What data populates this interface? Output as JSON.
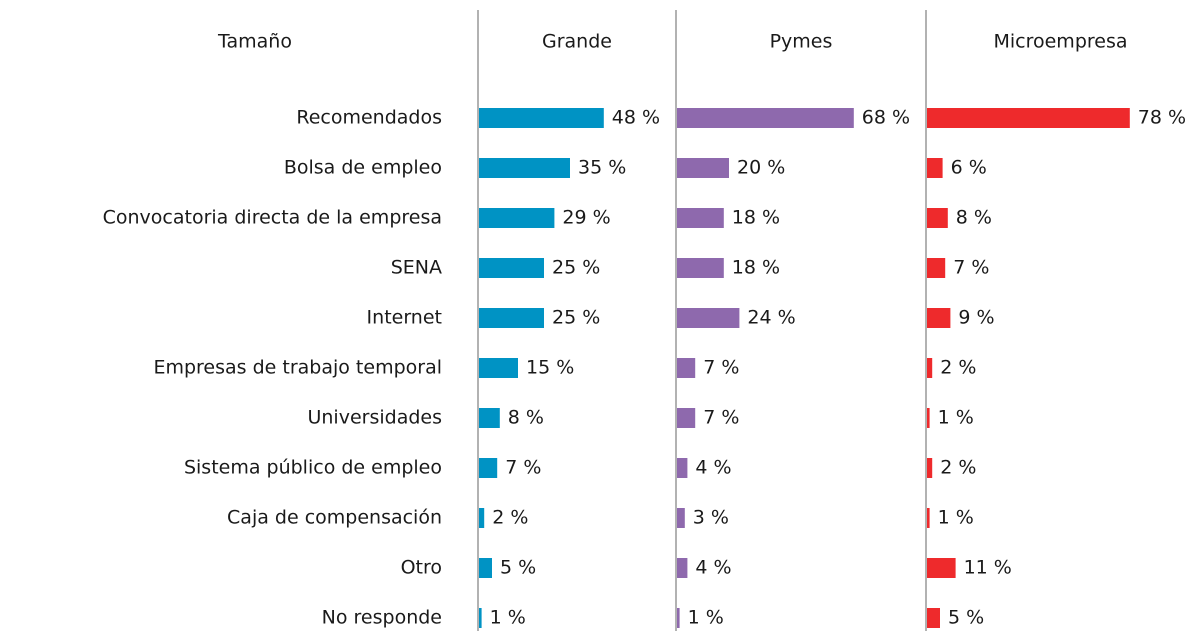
{
  "chart_data": {
    "type": "bar",
    "y_label": "Tamaño",
    "categories": [
      "Recomendados",
      "Bolsa de empleo",
      "Convocatoria directa de la empresa",
      "SENA",
      "Internet",
      "Empresas de trabajo temporal",
      "Universidades",
      "Sistema público de empleo",
      "Caja de compensación",
      "Otro",
      "No responde"
    ],
    "series": [
      {
        "name": "Grande",
        "color": "#0093c4",
        "values": [
          48,
          35,
          29,
          25,
          25,
          15,
          8,
          7,
          2,
          5,
          1
        ],
        "value_labels": [
          "48 %",
          "35 %",
          "29 %",
          "25 %",
          "25 %",
          "15 %",
          "8 %",
          "7 %",
          "2 %",
          "5 %",
          "1 %"
        ]
      },
      {
        "name": "Pymes",
        "color": "#8e69ad",
        "values": [
          68,
          20,
          18,
          18,
          24,
          7,
          7,
          4,
          3,
          4,
          1
        ],
        "value_labels": [
          "68 %",
          "20 %",
          "18 %",
          "18 %",
          "24 %",
          "7 %",
          "7 %",
          "4 %",
          "3 %",
          "4 %",
          "1 %"
        ]
      },
      {
        "name": "Microempresa",
        "color": "#ee2a2c",
        "values": [
          78,
          6,
          8,
          7,
          9,
          2,
          1,
          2,
          1,
          11,
          5
        ],
        "value_labels": [
          "78 %",
          "6 %",
          "8 %",
          "7 %",
          "9 %",
          "2 %",
          "1 %",
          "2 %",
          "1 %",
          "11 %",
          "5 %"
        ]
      }
    ]
  }
}
